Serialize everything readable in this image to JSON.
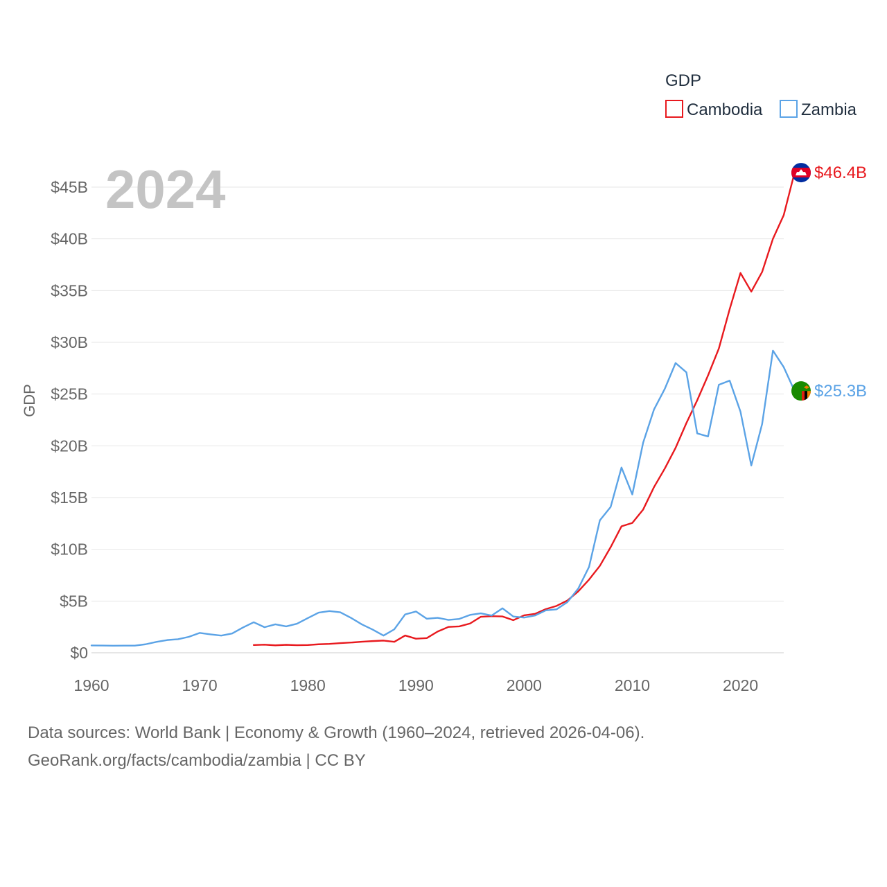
{
  "chart_data": {
    "type": "line",
    "year_label": "2024",
    "legend_title": "GDP",
    "ylabel": "GDP",
    "xlim": [
      1960,
      2024
    ],
    "ylim": [
      0,
      45
    ],
    "x_ticks": [
      1960,
      1970,
      1980,
      1990,
      2000,
      2010,
      2020
    ],
    "x_tick_labels": [
      "1960",
      "1970",
      "1980",
      "1990",
      "2000",
      "2010",
      "2020"
    ],
    "y_ticks": [
      0,
      5,
      10,
      15,
      20,
      25,
      30,
      35,
      40,
      45
    ],
    "y_tick_labels": [
      "$0",
      "$5B",
      "$10B",
      "$15B",
      "$20B",
      "$25B",
      "$30B",
      "$35B",
      "$40B",
      "$45B"
    ],
    "grid": true,
    "units": "billion USD",
    "series": [
      {
        "name": "Cambodia",
        "color": "#e8191e",
        "end_label": "$46.4B",
        "end_value": 46.4,
        "flag_icon": "cambodia-flag-icon",
        "points": [
          [
            1975,
            0.75
          ],
          [
            1976,
            0.78
          ],
          [
            1977,
            0.72
          ],
          [
            1978,
            0.77
          ],
          [
            1979,
            0.73
          ],
          [
            1980,
            0.75
          ],
          [
            1981,
            0.82
          ],
          [
            1982,
            0.86
          ],
          [
            1983,
            0.93
          ],
          [
            1984,
            0.99
          ],
          [
            1985,
            1.07
          ],
          [
            1986,
            1.13
          ],
          [
            1987,
            1.18
          ],
          [
            1988,
            1.06
          ],
          [
            1989,
            1.67
          ],
          [
            1990,
            1.36
          ],
          [
            1991,
            1.42
          ],
          [
            1992,
            2.05
          ],
          [
            1993,
            2.5
          ],
          [
            1994,
            2.55
          ],
          [
            1995,
            2.83
          ],
          [
            1996,
            3.48
          ],
          [
            1997,
            3.54
          ],
          [
            1998,
            3.51
          ],
          [
            1999,
            3.15
          ],
          [
            2000,
            3.62
          ],
          [
            2001,
            3.76
          ],
          [
            2002,
            4.22
          ],
          [
            2003,
            4.53
          ],
          [
            2004,
            5.05
          ],
          [
            2005,
            5.93
          ],
          [
            2006,
            7.07
          ],
          [
            2007,
            8.4
          ],
          [
            2008,
            10.21
          ],
          [
            2009,
            12.22
          ],
          [
            2010,
            12.55
          ],
          [
            2011,
            13.84
          ],
          [
            2012,
            16.0
          ],
          [
            2013,
            17.8
          ],
          [
            2014,
            19.8
          ],
          [
            2015,
            22.2
          ],
          [
            2016,
            24.4
          ],
          [
            2017,
            26.8
          ],
          [
            2018,
            29.4
          ],
          [
            2019,
            33.2
          ],
          [
            2020,
            36.7
          ],
          [
            2021,
            34.9
          ],
          [
            2022,
            36.8
          ],
          [
            2023,
            40.0
          ],
          [
            2024,
            42.3
          ],
          [
            2025,
            46.4
          ],
          [
            2025.5,
            46.4
          ]
        ]
      },
      {
        "name": "Zambia",
        "color": "#5ba3e6",
        "end_label": "$25.3B",
        "end_value": 25.3,
        "flag_icon": "zambia-flag-icon",
        "points": [
          [
            1960,
            0.71
          ],
          [
            1961,
            0.7
          ],
          [
            1962,
            0.68
          ],
          [
            1963,
            0.69
          ],
          [
            1964,
            0.69
          ],
          [
            1965,
            0.82
          ],
          [
            1966,
            1.05
          ],
          [
            1967,
            1.23
          ],
          [
            1968,
            1.31
          ],
          [
            1969,
            1.54
          ],
          [
            1970,
            1.92
          ],
          [
            1971,
            1.78
          ],
          [
            1972,
            1.66
          ],
          [
            1973,
            1.86
          ],
          [
            1974,
            2.44
          ],
          [
            1975,
            2.95
          ],
          [
            1976,
            2.47
          ],
          [
            1977,
            2.75
          ],
          [
            1978,
            2.55
          ],
          [
            1979,
            2.81
          ],
          [
            1980,
            3.35
          ],
          [
            1981,
            3.88
          ],
          [
            1982,
            4.03
          ],
          [
            1983,
            3.91
          ],
          [
            1984,
            3.37
          ],
          [
            1985,
            2.74
          ],
          [
            1986,
            2.24
          ],
          [
            1987,
            1.66
          ],
          [
            1988,
            2.27
          ],
          [
            1989,
            3.71
          ],
          [
            1990,
            3.99
          ],
          [
            1991,
            3.29
          ],
          [
            1992,
            3.38
          ],
          [
            1993,
            3.18
          ],
          [
            1994,
            3.27
          ],
          [
            1995,
            3.66
          ],
          [
            1996,
            3.81
          ],
          [
            1997,
            3.6
          ],
          [
            1998,
            4.3
          ],
          [
            1999,
            3.5
          ],
          [
            2000,
            3.4
          ],
          [
            2001,
            3.6
          ],
          [
            2002,
            4.1
          ],
          [
            2003,
            4.2
          ],
          [
            2004,
            4.9
          ],
          [
            2005,
            6.2
          ],
          [
            2006,
            8.3
          ],
          [
            2007,
            12.8
          ],
          [
            2008,
            14.1
          ],
          [
            2009,
            17.9
          ],
          [
            2010,
            15.3
          ],
          [
            2011,
            20.3
          ],
          [
            2012,
            23.5
          ],
          [
            2013,
            25.5
          ],
          [
            2014,
            28.0
          ],
          [
            2015,
            27.1
          ],
          [
            2016,
            21.2
          ],
          [
            2017,
            20.9
          ],
          [
            2018,
            25.9
          ],
          [
            2019,
            26.3
          ],
          [
            2020,
            23.3
          ],
          [
            2021,
            18.1
          ],
          [
            2022,
            22.1
          ],
          [
            2023,
            29.2
          ],
          [
            2024,
            27.6
          ],
          [
            2025,
            25.3
          ],
          [
            2025.5,
            25.3
          ]
        ]
      }
    ]
  },
  "footer": {
    "sources": "Data sources: World Bank | Economy & Growth (1960–2024, retrieved 2026-04-06).",
    "credit": "GeoRank.org/facts/cambodia/zambia | CC BY"
  }
}
